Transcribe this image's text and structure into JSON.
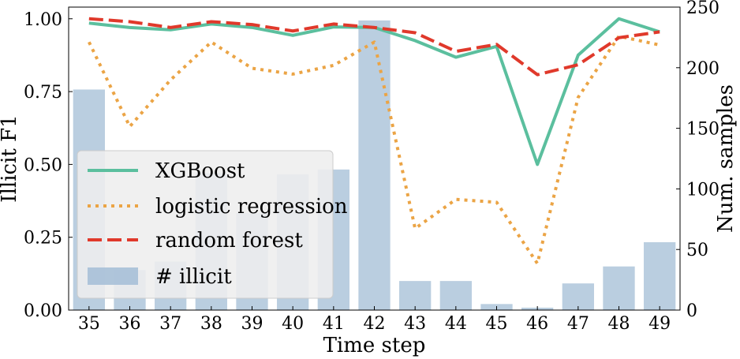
{
  "chart_data": {
    "type": "bar+line",
    "xlabel": "Time step",
    "ylabel_left": "Illicit F1",
    "ylabel_right": "Num. samples",
    "ylim_left": [
      0,
      1.04
    ],
    "ylim_right": [
      0,
      250
    ],
    "left_ticks": [
      0.0,
      0.25,
      0.5,
      0.75,
      1.0
    ],
    "left_tick_labels": [
      "0.00",
      "0.25",
      "0.50",
      "0.75",
      "1.00"
    ],
    "right_ticks": [
      0,
      50,
      100,
      150,
      200,
      250
    ],
    "right_tick_labels": [
      "0",
      "50",
      "100",
      "150",
      "200",
      "250"
    ],
    "categories": [
      "35",
      "36",
      "37",
      "38",
      "39",
      "40",
      "41",
      "42",
      "43",
      "44",
      "45",
      "46",
      "47",
      "48",
      "49"
    ],
    "bars": {
      "name": "# illicit",
      "color": "#a3bdd6",
      "values": [
        182,
        33,
        40,
        113,
        80,
        112,
        116,
        239,
        24,
        24,
        5,
        2,
        22,
        36,
        56
      ]
    },
    "series": [
      {
        "name": "XGBoost",
        "style": "solid",
        "color": "#5bbf9e",
        "values": [
          0.985,
          0.97,
          0.962,
          0.982,
          0.97,
          0.943,
          0.972,
          0.97,
          0.925,
          0.868,
          0.905,
          0.5,
          0.875,
          1.0,
          0.955
        ]
      },
      {
        "name": "logistic regression",
        "style": "dotted",
        "color": "#eba445",
        "values": [
          0.92,
          0.63,
          0.79,
          0.92,
          0.83,
          0.81,
          0.84,
          0.92,
          0.28,
          0.38,
          0.37,
          0.16,
          0.73,
          0.94,
          0.91
        ]
      },
      {
        "name": "random forest",
        "style": "dashed",
        "color": "#e0392b",
        "values": [
          1.0,
          0.99,
          0.97,
          0.99,
          0.98,
          0.958,
          0.982,
          0.97,
          0.952,
          0.888,
          0.912,
          0.808,
          0.842,
          0.935,
          0.955
        ]
      }
    ],
    "legend": {
      "placement": "center-left",
      "entries": [
        "XGBoost",
        "logistic regression",
        "random forest",
        "# illicit"
      ]
    },
    "grid": false
  }
}
